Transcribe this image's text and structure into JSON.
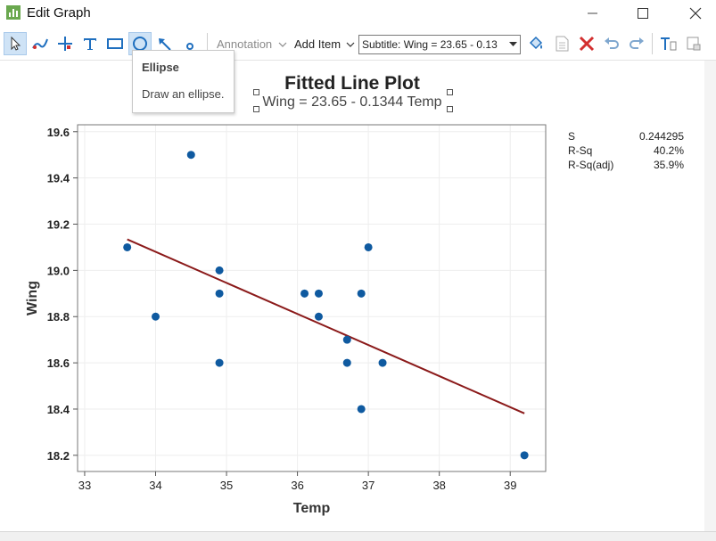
{
  "window": {
    "title": "Edit Graph"
  },
  "toolbar": {
    "annotation_label": "Annotation",
    "add_item_label": "Add Item",
    "subtitle_select_value": "Subtitle: Wing = 23.65 - 0.13"
  },
  "tooltip": {
    "title": "Ellipse",
    "description": "Draw an ellipse."
  },
  "graph": {
    "title": "Fitted Line Plot",
    "subtitle": "Wing = 23.65 - 0.1344 Temp"
  },
  "stats": [
    {
      "label": "S",
      "value": "0.244295"
    },
    {
      "label": "R-Sq",
      "value": "40.2%"
    },
    {
      "label": "R-Sq(adj)",
      "value": "35.9%"
    }
  ],
  "colors": {
    "points": "#0f5aa0",
    "fit_line": "#8b1a1a",
    "accent": "#1f6fbf",
    "delete": "#d32f2f"
  },
  "chart_data": {
    "type": "scatter",
    "title": "Fitted Line Plot",
    "subtitle": "Wing = 23.65 - 0.1344 Temp",
    "xlabel": "Temp",
    "ylabel": "Wing",
    "xlim": [
      32.9,
      39.5
    ],
    "ylim": [
      18.13,
      19.63
    ],
    "xticks": [
      33,
      34,
      35,
      36,
      37,
      38,
      39
    ],
    "yticks": [
      18.2,
      18.4,
      18.6,
      18.8,
      19.0,
      19.2,
      19.4,
      19.6
    ],
    "xtick_labels": [
      "33",
      "34",
      "35",
      "36",
      "37",
      "38",
      "39"
    ],
    "ytick_labels": [
      "18.2",
      "18.4",
      "18.6",
      "18.8",
      "19.0",
      "19.2",
      "19.4",
      "19.6"
    ],
    "grid": true,
    "points": [
      {
        "x": 33.6,
        "y": 19.1
      },
      {
        "x": 34.0,
        "y": 18.8
      },
      {
        "x": 34.5,
        "y": 19.5
      },
      {
        "x": 34.9,
        "y": 19.0
      },
      {
        "x": 34.9,
        "y": 18.9
      },
      {
        "x": 34.9,
        "y": 18.6
      },
      {
        "x": 36.1,
        "y": 18.9
      },
      {
        "x": 36.3,
        "y": 18.9
      },
      {
        "x": 36.3,
        "y": 18.8
      },
      {
        "x": 36.7,
        "y": 18.7
      },
      {
        "x": 36.7,
        "y": 18.6
      },
      {
        "x": 36.9,
        "y": 18.9
      },
      {
        "x": 36.9,
        "y": 18.4
      },
      {
        "x": 37.0,
        "y": 19.1
      },
      {
        "x": 37.2,
        "y": 18.6
      },
      {
        "x": 39.2,
        "y": 18.2
      }
    ],
    "fit": {
      "intercept": 23.65,
      "slope": -0.1344,
      "x_range": [
        33.6,
        39.2
      ]
    }
  }
}
